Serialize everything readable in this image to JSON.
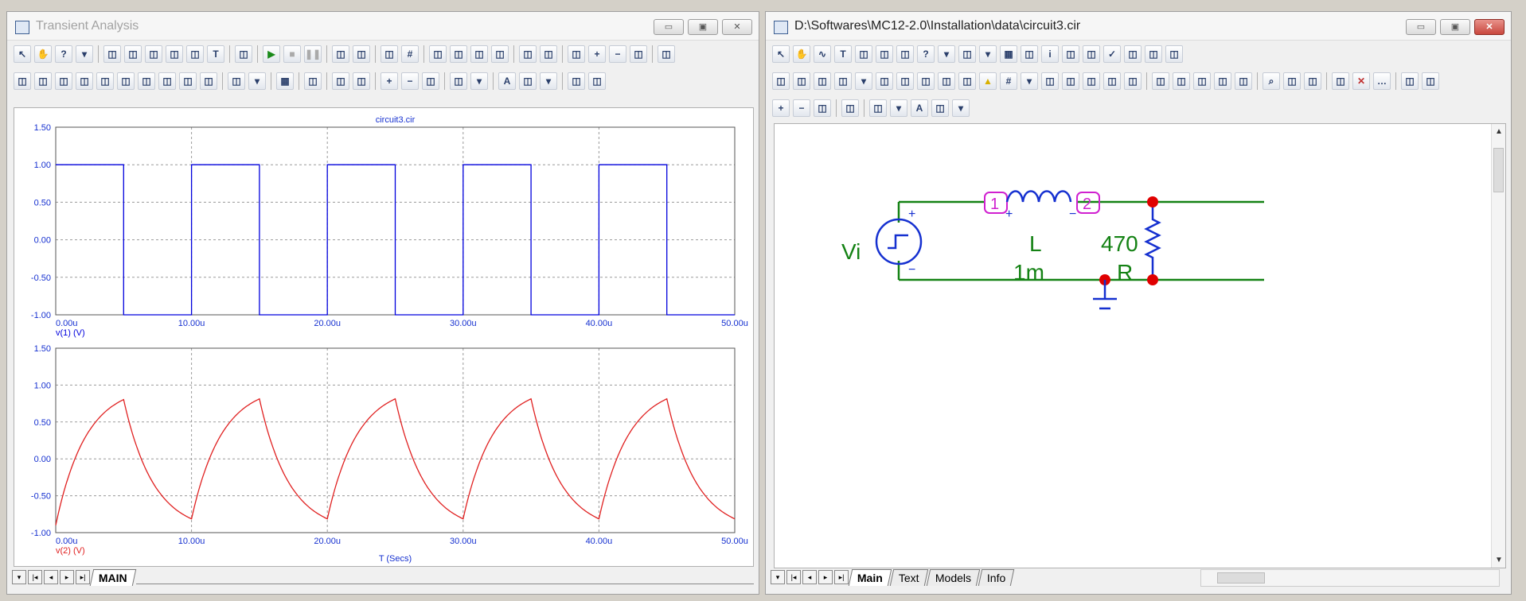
{
  "left_window": {
    "title": "Transient Analysis",
    "toolbar_row1": [
      "select-arrow-icon",
      "pan-hand-icon",
      "help-icon",
      "dropdown-icon",
      "|",
      "scale-icon",
      "cursor-icon",
      "peak-icon",
      "valley-icon",
      "slope-icon",
      "text-icon",
      "|",
      "properties-icon",
      "|",
      "run-icon",
      "stop-icon",
      "pause-icon",
      "|",
      "plot-limits-icon",
      "plot-limits-2-icon",
      "|",
      "box-icon",
      "grid-icon",
      "|",
      "view1-icon",
      "view2-icon",
      "view3-icon",
      "view4-icon",
      "|",
      "tile-h-icon",
      "tile-v-icon",
      "|",
      "zoom-fit-icon",
      "zoom-in-icon",
      "zoom-out-icon",
      "zoom-area-icon",
      "|",
      "export-icon"
    ],
    "toolbar_row2": [
      "cursor-1-icon",
      "cursor-2-icon",
      "peak-icon",
      "valley-icon",
      "high-icon",
      "low-icon",
      "inflection-icon",
      "global-high-icon",
      "global-low-icon",
      "top-icon",
      "|",
      "paste-icon",
      "dropdown-icon",
      "|",
      "table-icon",
      "|",
      "copy-icon",
      "|",
      "fit-h-icon",
      "fit-v-icon",
      "|",
      "zoom-in-icon",
      "zoom-out-icon",
      "zoom-box-icon",
      "|",
      "grid-dots-icon",
      "dropdown-icon",
      "|",
      "font-icon",
      "style-icon",
      "dropdown-icon",
      "|",
      "page-icon",
      "page2-icon"
    ],
    "bottom_tab": "MAIN"
  },
  "chart_data": [
    {
      "type": "line",
      "title": "circuit3.cir",
      "xlabel": "",
      "ylabel": "v(1) (V)",
      "xlim": [
        0,
        50
      ],
      "ylim": [
        -1.0,
        1.5
      ],
      "x_unit": "u",
      "x_ticks": [
        "0.00u",
        "10.00u",
        "20.00u",
        "30.00u",
        "40.00u",
        "50.00u"
      ],
      "y_ticks": [
        "1.50",
        "1.00",
        "0.50",
        "0.00",
        "-0.50",
        "-1.00"
      ],
      "series": [
        {
          "name": "v(1) (V)",
          "color": "#0000dd",
          "period": 10,
          "duty": 0.5,
          "high": 1.0,
          "low": -1.0
        }
      ]
    },
    {
      "type": "line",
      "title": "",
      "xlabel": "T (Secs)",
      "ylabel": "v(2) (V)",
      "xlim": [
        0,
        50
      ],
      "ylim": [
        -1.0,
        1.5
      ],
      "x_unit": "u",
      "x_ticks": [
        "0.00u",
        "10.00u",
        "20.00u",
        "30.00u",
        "40.00u",
        "50.00u"
      ],
      "y_ticks": [
        "1.50",
        "1.00",
        "0.50",
        "0.00",
        "-0.50",
        "-1.00"
      ],
      "series": [
        {
          "name": "v(2) (V)",
          "color": "#e02020",
          "peak": 0.85,
          "trough": -0.85,
          "start": -0.9
        }
      ]
    }
  ],
  "right_window": {
    "title": "D:\\Softwares\\MC12-2.0\\Installation\\data\\circuit3.cir",
    "toolbar_row1": [
      "select-arrow-icon",
      "pan-hand-icon",
      "wire-icon",
      "text-icon",
      "pencil-icon",
      "check-pencil-icon",
      "bus-icon",
      "help-icon",
      "dropdown-icon",
      "component-icon",
      "dropdown-icon",
      "table-icon",
      "flag-icon",
      "info-icon",
      "window-icon",
      "probe-icon",
      "checkbox-icon",
      "report-icon",
      "list-icon",
      "edit-icon"
    ],
    "toolbar_row2": [
      "attr-a-icon",
      "attr-b-icon",
      "attr-c-icon",
      "attr-d-icon",
      "dropdown-icon",
      "node-icon",
      "pin-icon",
      "wire-c-icon",
      "wire-d-icon",
      "wire-e-icon",
      "warning-icon",
      "grid-icon",
      "dropdown-icon",
      "page-a-icon",
      "page-b-icon",
      "page-c-icon",
      "select-icon",
      "edit-icon",
      "|",
      "rect-select-icon",
      "blank-icon",
      "rotate-icon",
      "flip-h-icon",
      "flip-v-icon",
      "|",
      "find-icon",
      "find-next-icon",
      "copy-icon",
      "|",
      "circle-icon",
      "close-circle-icon",
      "more-icon",
      "|",
      "paste-icon",
      "paste2-icon"
    ],
    "toolbar_row3": [
      "zoom-in-icon",
      "zoom-out-icon",
      "zoom-fit-icon",
      "|",
      "page-icon",
      "|",
      "grid-dots-icon",
      "dropdown-icon",
      "font-icon",
      "style-icon",
      "dropdown-icon"
    ],
    "tabs": [
      "Main",
      "Text",
      "Models",
      "Info"
    ],
    "components": {
      "source_label": "Vi",
      "inductor_label": "L",
      "inductor_value": "1m",
      "resistor_value": "470",
      "resistor_label": "R",
      "node1": "1",
      "node2": "2",
      "plus": "+",
      "minus": "−"
    }
  }
}
